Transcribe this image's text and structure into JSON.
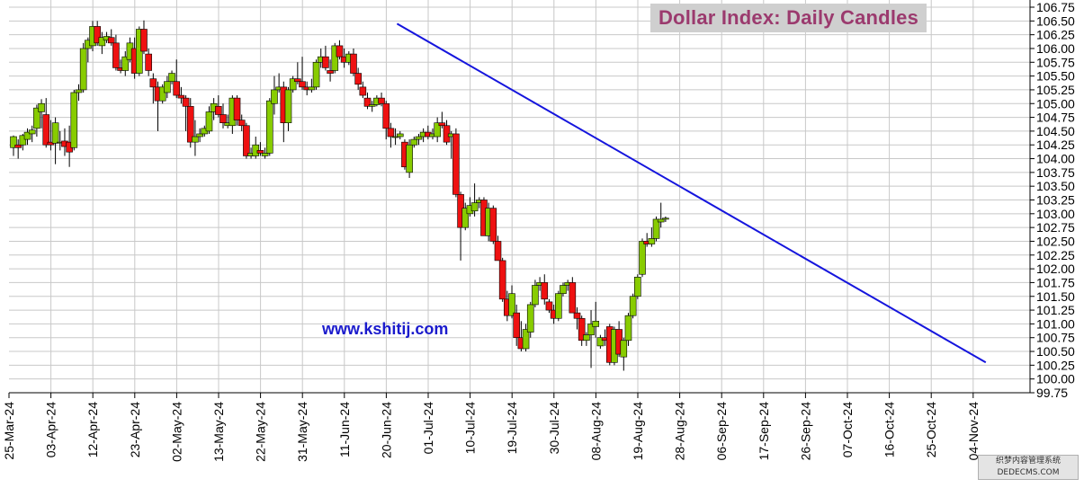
{
  "watermark": "www.kshitij.com",
  "corner_mark": {
    "line1": "织梦内容管理系统",
    "line2": "DEDECMS.COM"
  },
  "chart_data": {
    "type": "candlestick",
    "title": "Dollar Index: Daily Candles",
    "ylim": [
      99.75,
      106.75
    ],
    "y_ticks": [
      99.75,
      100.0,
      100.25,
      100.5,
      100.75,
      101.0,
      101.25,
      101.5,
      101.75,
      102.0,
      102.25,
      102.5,
      102.75,
      103.0,
      103.25,
      103.5,
      103.75,
      104.0,
      104.25,
      104.5,
      104.75,
      105.0,
      105.25,
      105.5,
      105.75,
      106.0,
      106.25,
      106.5,
      106.75
    ],
    "x_ticks": [
      "25-Mar-24",
      "03-Apr-24",
      "12-Apr-24",
      "23-Apr-24",
      "02-May-24",
      "13-May-24",
      "22-May-24",
      "31-May-24",
      "11-Jun-24",
      "20-Jun-24",
      "01-Jul-24",
      "10-Jul-24",
      "19-Jul-24",
      "30-Jul-24",
      "08-Aug-24",
      "19-Aug-24",
      "28-Aug-24",
      "06-Sep-24",
      "17-Sep-24",
      "26-Sep-24",
      "07-Oct-24",
      "16-Oct-24",
      "25-Oct-24",
      "04-Nov-24"
    ],
    "bullish_color": "#88cc00",
    "bearish_color": "#ee1111",
    "trendline_color": "#1515dd",
    "trendline": {
      "from": [
        "20-Jun-24",
        106.45
      ],
      "to": [
        "04-Nov-24",
        100.3
      ]
    },
    "grid": true,
    "candles": [
      [
        104.2,
        104.42,
        104.05,
        104.4
      ],
      [
        104.25,
        104.35,
        104.0,
        104.2
      ],
      [
        104.25,
        104.45,
        104.15,
        104.42
      ],
      [
        104.35,
        104.55,
        104.25,
        104.48
      ],
      [
        104.45,
        104.6,
        104.3,
        104.52
      ],
      [
        104.55,
        104.98,
        104.4,
        104.92
      ],
      [
        104.85,
        105.08,
        104.55,
        105.0
      ],
      [
        104.8,
        105.1,
        104.2,
        104.25
      ],
      [
        104.3,
        104.7,
        104.15,
        104.25
      ],
      [
        104.28,
        104.75,
        103.9,
        104.65
      ],
      [
        104.3,
        104.5,
        104.15,
        104.3
      ],
      [
        104.32,
        104.55,
        104.05,
        104.22
      ],
      [
        104.3,
        104.6,
        103.85,
        104.12
      ],
      [
        104.2,
        105.25,
        104.15,
        105.2
      ],
      [
        105.2,
        105.35,
        105.05,
        105.25
      ],
      [
        105.25,
        106.1,
        105.2,
        106.0
      ],
      [
        106.0,
        106.2,
        105.75,
        106.15
      ],
      [
        106.05,
        106.5,
        105.95,
        106.4
      ],
      [
        106.4,
        106.5,
        106.05,
        106.1
      ],
      [
        106.05,
        106.3,
        105.9,
        106.2
      ],
      [
        106.15,
        106.3,
        106.1,
        106.22
      ],
      [
        106.2,
        106.35,
        106.05,
        106.1
      ],
      [
        106.1,
        106.25,
        105.6,
        105.65
      ],
      [
        105.65,
        105.8,
        105.55,
        105.6
      ],
      [
        105.6,
        105.95,
        105.5,
        105.85
      ],
      [
        105.8,
        106.2,
        105.75,
        106.1
      ],
      [
        106.0,
        106.2,
        105.45,
        105.55
      ],
      [
        105.55,
        106.4,
        105.5,
        106.35
      ],
      [
        106.35,
        106.51,
        105.9,
        105.95
      ],
      [
        105.9,
        106.0,
        105.5,
        105.6
      ],
      [
        105.45,
        105.55,
        105.0,
        105.3
      ],
      [
        105.3,
        105.4,
        104.5,
        105.05
      ],
      [
        105.05,
        105.35,
        105.0,
        105.3
      ],
      [
        105.2,
        105.5,
        105.1,
        105.4
      ],
      [
        105.4,
        105.6,
        105.35,
        105.55
      ],
      [
        105.4,
        105.8,
        105.1,
        105.15
      ],
      [
        105.15,
        105.3,
        105.0,
        105.1
      ],
      [
        105.1,
        105.15,
        104.5,
        104.95
      ],
      [
        104.95,
        105.1,
        104.2,
        104.3
      ],
      [
        104.3,
        104.7,
        104.05,
        104.4
      ],
      [
        104.4,
        104.55,
        104.3,
        104.45
      ],
      [
        104.45,
        104.6,
        104.4,
        104.55
      ],
      [
        104.5,
        104.95,
        104.45,
        104.85
      ],
      [
        104.85,
        105.1,
        104.7,
        105.0
      ],
      [
        104.95,
        105.15,
        104.75,
        104.8
      ],
      [
        104.8,
        105.0,
        104.55,
        104.65
      ],
      [
        104.6,
        104.8,
        104.55,
        104.65
      ],
      [
        104.6,
        105.15,
        104.45,
        105.1
      ],
      [
        105.1,
        105.15,
        104.6,
        104.7
      ],
      [
        104.7,
        104.8,
        104.5,
        104.6
      ],
      [
        104.6,
        104.65,
        104.0,
        104.05
      ],
      [
        104.05,
        104.2,
        104.0,
        104.1
      ],
      [
        104.05,
        104.4,
        104.0,
        104.25
      ],
      [
        104.15,
        104.3,
        104.05,
        104.1
      ],
      [
        104.05,
        104.2,
        104.0,
        104.1
      ],
      [
        104.1,
        105.1,
        104.05,
        105.05
      ],
      [
        105.0,
        105.5,
        104.8,
        105.25
      ],
      [
        105.25,
        105.55,
        105.2,
        105.3
      ],
      [
        105.3,
        105.4,
        104.3,
        104.65
      ],
      [
        104.65,
        105.3,
        104.5,
        105.25
      ],
      [
        105.25,
        105.5,
        105.2,
        105.45
      ],
      [
        105.45,
        105.75,
        105.35,
        105.4
      ],
      [
        105.4,
        105.85,
        105.25,
        105.3
      ],
      [
        105.3,
        105.4,
        105.15,
        105.25
      ],
      [
        105.25,
        105.45,
        105.2,
        105.3
      ],
      [
        105.3,
        105.8,
        105.25,
        105.75
      ],
      [
        105.75,
        106.0,
        105.65,
        105.85
      ],
      [
        105.85,
        106.05,
        105.6,
        105.65
      ],
      [
        105.6,
        105.8,
        105.4,
        105.55
      ],
      [
        105.6,
        106.1,
        105.55,
        106.05
      ],
      [
        106.05,
        106.15,
        105.8,
        105.85
      ],
      [
        105.85,
        106.0,
        105.65,
        105.75
      ],
      [
        105.75,
        105.95,
        105.7,
        105.9
      ],
      [
        105.9,
        106.0,
        105.5,
        105.55
      ],
      [
        105.55,
        105.65,
        105.25,
        105.35
      ],
      [
        105.3,
        105.4,
        105.1,
        105.15
      ],
      [
        105.1,
        105.2,
        104.9,
        104.95
      ],
      [
        104.95,
        105.05,
        104.85,
        104.98
      ],
      [
        104.98,
        105.15,
        104.95,
        105.1
      ],
      [
        105.1,
        105.2,
        104.95,
        105.0
      ],
      [
        105.0,
        105.05,
        104.35,
        104.55
      ],
      [
        104.55,
        104.65,
        104.2,
        104.4
      ],
      [
        104.4,
        104.55,
        104.25,
        104.4
      ],
      [
        104.4,
        104.5,
        104.35,
        104.45
      ],
      [
        104.3,
        104.35,
        103.8,
        103.85
      ],
      [
        103.75,
        104.35,
        103.65,
        104.25
      ],
      [
        104.25,
        104.4,
        104.2,
        104.35
      ],
      [
        104.35,
        104.45,
        104.25,
        104.4
      ],
      [
        104.4,
        104.55,
        104.3,
        104.48
      ],
      [
        104.48,
        104.6,
        104.35,
        104.4
      ],
      [
        104.4,
        104.55,
        104.35,
        104.45
      ],
      [
        104.4,
        104.75,
        104.3,
        104.65
      ],
      [
        104.65,
        104.85,
        104.55,
        104.6
      ],
      [
        104.6,
        104.7,
        104.25,
        104.3
      ],
      [
        104.4,
        104.5,
        104.0,
        104.45
      ],
      [
        104.45,
        104.55,
        103.3,
        103.35
      ],
      [
        103.35,
        103.4,
        102.15,
        102.75
      ],
      [
        102.75,
        103.2,
        102.7,
        103.1
      ],
      [
        103.0,
        103.3,
        102.95,
        103.15
      ],
      [
        103.05,
        103.55,
        102.95,
        103.2
      ],
      [
        103.2,
        103.3,
        103.1,
        103.25
      ],
      [
        103.25,
        103.3,
        102.6,
        102.6
      ],
      [
        102.6,
        103.2,
        102.5,
        103.1
      ],
      [
        103.1,
        103.15,
        102.45,
        102.5
      ],
      [
        102.5,
        102.6,
        102.15,
        102.15
      ],
      [
        102.15,
        102.2,
        101.4,
        101.45
      ],
      [
        101.45,
        101.6,
        101.05,
        101.15
      ],
      [
        101.15,
        101.7,
        101.1,
        101.55
      ],
      [
        101.2,
        101.35,
        100.6,
        100.75
      ],
      [
        100.75,
        101.05,
        100.5,
        100.55
      ],
      [
        100.55,
        101.0,
        100.5,
        100.9
      ],
      [
        100.85,
        101.4,
        100.75,
        101.35
      ],
      [
        101.35,
        101.8,
        101.3,
        101.7
      ],
      [
        101.7,
        101.85,
        101.6,
        101.75
      ],
      [
        101.75,
        101.9,
        101.35,
        101.45
      ],
      [
        101.4,
        101.45,
        101.2,
        101.25
      ],
      [
        101.25,
        101.35,
        101.0,
        101.1
      ],
      [
        101.1,
        101.6,
        101.05,
        101.55
      ],
      [
        101.55,
        101.75,
        101.5,
        101.7
      ],
      [
        101.7,
        101.8,
        101.6,
        101.75
      ],
      [
        101.75,
        101.85,
        101.2,
        101.2
      ],
      [
        101.2,
        101.3,
        100.9,
        101.1
      ],
      [
        101.1,
        101.15,
        100.6,
        100.7
      ],
      [
        100.7,
        100.85,
        100.6,
        100.8
      ],
      [
        100.8,
        101.25,
        100.2,
        101.0
      ],
      [
        100.95,
        101.4,
        100.75,
        101.05
      ],
      [
        100.6,
        100.8,
        100.55,
        100.75
      ],
      [
        100.75,
        100.9,
        100.6,
        100.7
      ],
      [
        100.95,
        101.0,
        100.25,
        100.3
      ],
      [
        100.3,
        100.95,
        100.25,
        100.9
      ],
      [
        100.9,
        101.05,
        100.4,
        100.45
      ],
      [
        100.4,
        100.75,
        100.15,
        100.7
      ],
      [
        100.7,
        101.2,
        100.6,
        101.15
      ],
      [
        101.15,
        101.55,
        101.1,
        101.5
      ],
      [
        101.5,
        101.9,
        101.45,
        101.85
      ],
      [
        101.9,
        102.55,
        101.85,
        102.5
      ],
      [
        102.5,
        102.65,
        102.4,
        102.45
      ],
      [
        102.45,
        102.75,
        102.4,
        102.55
      ],
      [
        102.55,
        102.95,
        102.5,
        102.9
      ],
      [
        102.85,
        103.2,
        102.75,
        102.9
      ],
      [
        102.9,
        102.95,
        102.85,
        102.92
      ]
    ]
  }
}
